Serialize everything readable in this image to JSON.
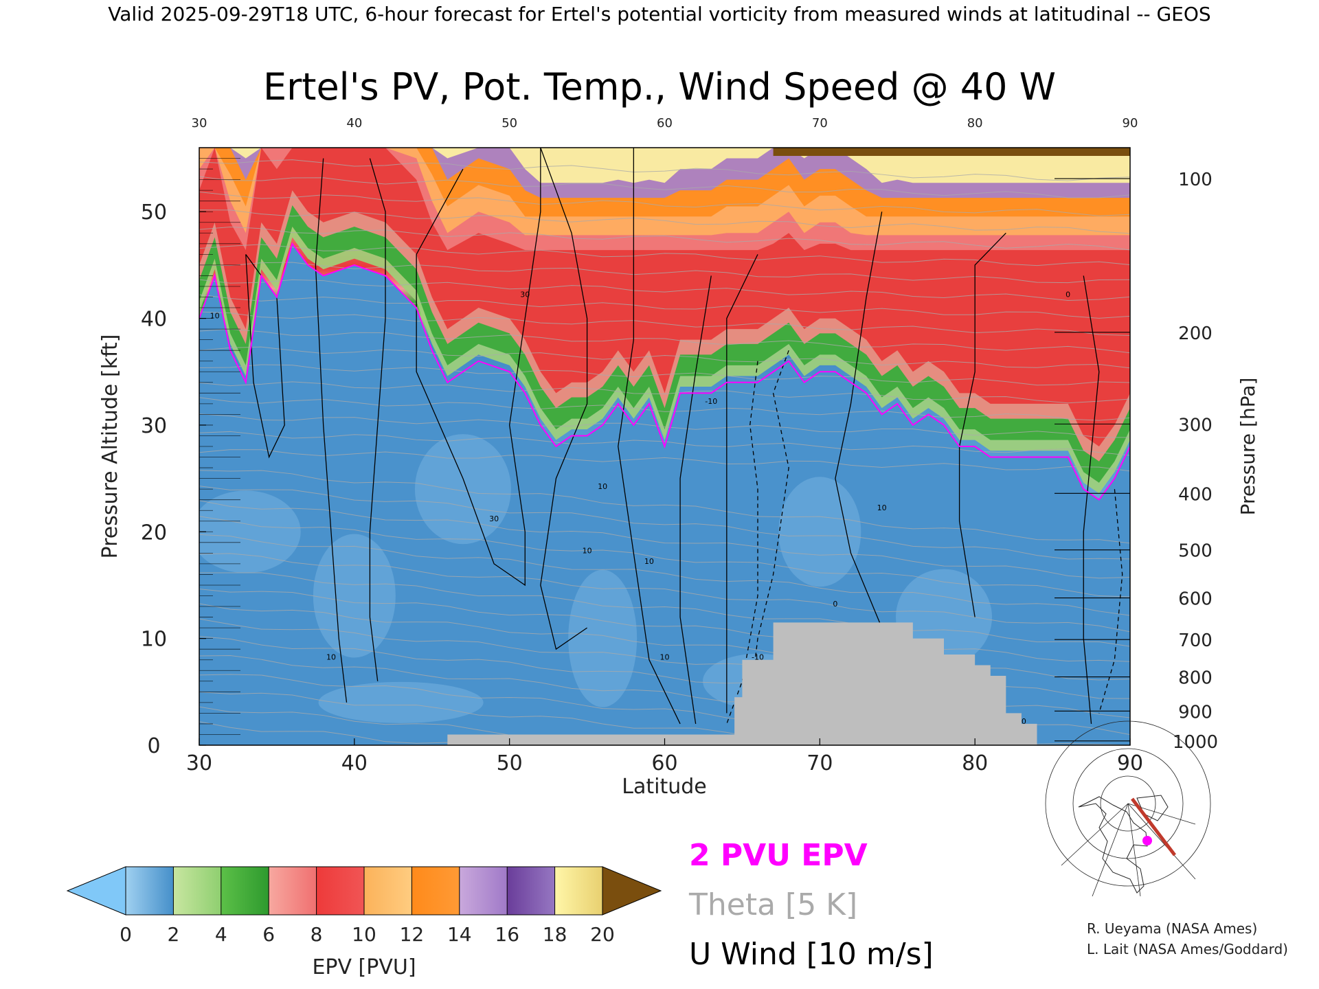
{
  "header": {
    "valid_text": "Valid 2025-09-29T18 UTC, 6-hour forecast for Ertel's potential vorticity from measured winds at latitudinal -- GEOS"
  },
  "chart_data": {
    "type": "heatmap",
    "title": "Ertel's PV, Pot. Temp., Wind Speed @ 40 W",
    "xlabel": "Latitude",
    "ylabel_left": "Pressure Altitude [kft]",
    "ylabel_right": "Pressure [hPa]",
    "xlim": [
      30,
      90
    ],
    "ylim": [
      0,
      56
    ],
    "x_ticks": [
      "30",
      "40",
      "50",
      "60",
      "70",
      "80",
      "90"
    ],
    "x_ticks_top": [
      "30",
      "40",
      "50",
      "60",
      "70",
      "80",
      "90"
    ],
    "y_ticks": [
      "0",
      "10",
      "20",
      "30",
      "40",
      "50"
    ],
    "pressure_ticks": [
      {
        "label": "100",
        "kft": 53.1
      },
      {
        "label": "200",
        "kft": 38.7
      },
      {
        "label": "300",
        "kft": 30.1
      },
      {
        "label": "400",
        "kft": 23.6
      },
      {
        "label": "500",
        "kft": 18.3
      },
      {
        "label": "600",
        "kft": 13.8
      },
      {
        "label": "700",
        "kft": 9.9
      },
      {
        "label": "800",
        "kft": 6.4
      },
      {
        "label": "900",
        "kft": 3.2
      },
      {
        "label": "1000",
        "kft": 0.4
      }
    ],
    "tropopause_2pvu": {
      "lat": [
        30,
        31,
        32,
        33,
        34,
        35,
        36,
        37,
        38,
        40,
        42,
        44,
        45,
        46,
        48,
        50,
        51,
        52,
        53,
        54,
        55,
        56,
        57,
        58,
        59,
        60,
        61,
        62,
        63,
        64,
        65,
        66,
        67,
        68,
        69,
        70,
        71,
        72,
        73,
        74,
        75,
        76,
        77,
        78,
        79,
        80,
        81,
        82,
        83,
        84,
        85,
        86,
        87,
        88,
        89,
        90
      ],
      "kft": [
        40,
        44,
        37,
        34,
        44,
        42,
        47,
        45,
        44,
        45,
        44,
        41,
        37,
        34,
        36,
        35,
        33,
        30,
        28,
        29,
        29,
        30,
        32,
        30,
        32,
        28,
        33,
        33,
        33,
        34,
        34,
        34,
        35,
        36,
        34,
        35,
        35,
        34,
        33,
        31,
        32,
        30,
        31,
        30,
        28,
        28,
        27,
        27,
        27,
        27,
        27,
        27,
        24,
        23,
        25,
        28
      ]
    },
    "wind_contour_labels": [
      "10",
      "10",
      "30",
      "30",
      "10",
      "10",
      "10",
      "-10",
      "0",
      "10",
      "0",
      "10",
      "10",
      "-10"
    ],
    "colorbar": {
      "label": "EPV [PVU]",
      "ticks": [
        "0",
        "2",
        "4",
        "6",
        "8",
        "10",
        "12",
        "14",
        "16",
        "18",
        "20"
      ],
      "segments": [
        {
          "from": 0,
          "to": 2.5,
          "colors": [
            "#9fd0f0",
            "#2f7fc0"
          ]
        },
        {
          "from": 2,
          "to": 4,
          "colors": [
            "#c8e6a0",
            "#8fcf70"
          ]
        },
        {
          "from": 4,
          "to": 6,
          "colors": [
            "#5cc048",
            "#2e9a2e"
          ]
        },
        {
          "from": 6,
          "to": 8,
          "colors": [
            "#f7a8a0",
            "#f07070"
          ]
        },
        {
          "from": 8,
          "to": 10,
          "colors": [
            "#ee3a3a",
            "#f05555"
          ]
        },
        {
          "from": 10,
          "to": 12,
          "colors": [
            "#fbb25a",
            "#ffcc80"
          ]
        },
        {
          "from": 12,
          "to": 14,
          "colors": [
            "#ff8a1a",
            "#ff9a35"
          ]
        },
        {
          "from": 14,
          "to": 16,
          "colors": [
            "#c9a8dc",
            "#a07ac8"
          ]
        },
        {
          "from": 16,
          "to": 18,
          "colors": [
            "#6a3d9a",
            "#9677c2"
          ]
        },
        {
          "from": 18,
          "to": 20,
          "colors": [
            "#fff6a8",
            "#e8d070"
          ]
        }
      ],
      "under_color": "#80c8f8",
      "over_color": "#7a4e0e"
    }
  },
  "legend": {
    "pv_label": "2 PVU EPV",
    "theta_label": "Theta [5 K]",
    "wind_label": "U Wind [10 m/s]"
  },
  "colors": {
    "pv_contour": "#ff00ff",
    "theta": "#aaaaaa",
    "terrain": "#bebebe"
  },
  "credits": {
    "line1": "R. Ueyama (NASA Ames)",
    "line2": "L. Lait (NASA Ames/Goddard)"
  },
  "inset_map": {
    "marker_color": "#ff00ff",
    "track_color": "#c0392b"
  }
}
